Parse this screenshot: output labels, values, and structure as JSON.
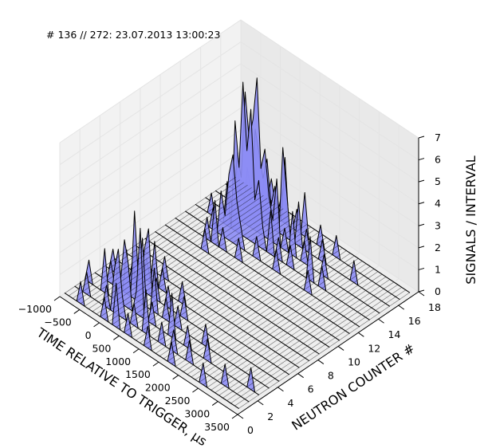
{
  "annotation": "# 136 // 272: 23.07.2013 13:00:23",
  "chart_data": {
    "type": "area",
    "projection": "3d",
    "xlabel": "TIME RELATIVE TO TRIGGER, μs",
    "ylabel": "NEUTRON COUNTER #",
    "zlabel": "SIGNALS / INTERVAL",
    "xlim": [
      -1000,
      3500
    ],
    "ylim": [
      0,
      18
    ],
    "zlim": [
      0,
      7
    ],
    "x_ticks": [
      "−1000",
      "−500",
      "0",
      "500",
      "1000",
      "1500",
      "2000",
      "2500",
      "3000",
      "3500"
    ],
    "y_ticks": [
      "0",
      "2",
      "4",
      "6",
      "8",
      "10",
      "12",
      "14",
      "16",
      "18"
    ],
    "z_ticks": [
      "0",
      "1",
      "2",
      "3",
      "4",
      "5",
      "6",
      "7"
    ],
    "grid": true,
    "face_color": "#8c8cf5",
    "edge_color": "#000000",
    "time_bins": [
      -1000,
      -900,
      -800,
      -700,
      -600,
      -500,
      -400,
      -300,
      -200,
      -100,
      0,
      100,
      200,
      300,
      400,
      500,
      600,
      700,
      800,
      900,
      1000,
      1100,
      1200,
      1300,
      1400,
      1500,
      1600,
      1700,
      1800,
      1900,
      2000,
      2100,
      2200,
      2300,
      2400,
      2500,
      2600,
      2700,
      2800,
      2900,
      3000,
      3100,
      3200,
      3300,
      3400
    ],
    "series": [
      {
        "counter": 1,
        "values": [
          0,
          0,
          0,
          0,
          1,
          0,
          0,
          0,
          0,
          0,
          1,
          0,
          0,
          2,
          0,
          0,
          1,
          0,
          0,
          0,
          0,
          1,
          0,
          0,
          0,
          0,
          0,
          1,
          0,
          0,
          0,
          0,
          0,
          0,
          0,
          1,
          0,
          0,
          0,
          0,
          0,
          0,
          0,
          0,
          0
        ]
      },
      {
        "counter": 2,
        "values": [
          0,
          0,
          0,
          1,
          0,
          0,
          0,
          0,
          1,
          0,
          2,
          3,
          1,
          0,
          0,
          1,
          0,
          0,
          2,
          0,
          0,
          0,
          1,
          0,
          0,
          1,
          0,
          0,
          0,
          1,
          0,
          0,
          0,
          0,
          0,
          0,
          0,
          0,
          1,
          0,
          0,
          0,
          0,
          0,
          0
        ]
      },
      {
        "counter": 3,
        "values": [
          0,
          1,
          0,
          0,
          0,
          2,
          0,
          0,
          0,
          1,
          3,
          2,
          0,
          1,
          4,
          0,
          0,
          1,
          0,
          0,
          0,
          0,
          2,
          0,
          0,
          0,
          1,
          0,
          0,
          0,
          0,
          1,
          0,
          0,
          0,
          0,
          0,
          0,
          0,
          0,
          0,
          0,
          1,
          0,
          0
        ]
      },
      {
        "counter": 4,
        "values": [
          0,
          0,
          0,
          0,
          1,
          0,
          1,
          0,
          2,
          0,
          4,
          1,
          3,
          0,
          0,
          2,
          0,
          0,
          1,
          0,
          0,
          1,
          0,
          0,
          0,
          0,
          0,
          0,
          1,
          0,
          0,
          0,
          0,
          0,
          0,
          0,
          0,
          0,
          0,
          0,
          0,
          0,
          0,
          0,
          0
        ]
      },
      {
        "counter": 5,
        "values": [
          0,
          0,
          1,
          0,
          0,
          0,
          0,
          1,
          0,
          0,
          2,
          3,
          0,
          1,
          0,
          0,
          1,
          0,
          0,
          0,
          1,
          0,
          0,
          0,
          0,
          0,
          0,
          0,
          0,
          0,
          0,
          0,
          0,
          0,
          0,
          0,
          0,
          0,
          0,
          0,
          0,
          0,
          0,
          0,
          0
        ]
      },
      {
        "counter": 6,
        "values": [
          0,
          0,
          0,
          0,
          0,
          1,
          0,
          0,
          1,
          0,
          2,
          0,
          1,
          0,
          0,
          0,
          0,
          1,
          0,
          0,
          0,
          0,
          0,
          0,
          0,
          0,
          0,
          0,
          0,
          0,
          0,
          0,
          0,
          0,
          0,
          0,
          0,
          0,
          0,
          0,
          0,
          0,
          0,
          0,
          0
        ]
      },
      {
        "counter": 7,
        "values": [
          0,
          0,
          0,
          0,
          0,
          0,
          0,
          0,
          0,
          0,
          1,
          0,
          0,
          0,
          0,
          0,
          0,
          0,
          0,
          0,
          0,
          0,
          0,
          0,
          0,
          0,
          0,
          0,
          0,
          0,
          0,
          0,
          0,
          0,
          0,
          0,
          0,
          0,
          0,
          0,
          0,
          0,
          0,
          0,
          0
        ]
      },
      {
        "counter": 8,
        "values": [
          0,
          0,
          0,
          0,
          0,
          0,
          0,
          0,
          0,
          0,
          0,
          0,
          0,
          0,
          0,
          0,
          0,
          0,
          0,
          0,
          0,
          0,
          0,
          0,
          0,
          0,
          0,
          0,
          0,
          0,
          0,
          0,
          0,
          0,
          0,
          0,
          0,
          0,
          0,
          0,
          0,
          0,
          0,
          0,
          0
        ]
      },
      {
        "counter": 9,
        "values": [
          0,
          0,
          0,
          0,
          0,
          0,
          0,
          0,
          0,
          0,
          0,
          0,
          0,
          0,
          0,
          0,
          0,
          0,
          0,
          0,
          0,
          0,
          0,
          0,
          0,
          0,
          0,
          0,
          0,
          0,
          0,
          0,
          0,
          0,
          0,
          0,
          0,
          0,
          0,
          0,
          0,
          0,
          0,
          0,
          0
        ]
      },
      {
        "counter": 10,
        "values": [
          0,
          0,
          0,
          0,
          0,
          0,
          0,
          0,
          0,
          0,
          0,
          0,
          0,
          0,
          0,
          0,
          0,
          0,
          0,
          0,
          0,
          0,
          0,
          0,
          0,
          0,
          0,
          0,
          0,
          0,
          0,
          0,
          0,
          0,
          0,
          0,
          0,
          0,
          0,
          0,
          0,
          0,
          0,
          0,
          0
        ]
      },
      {
        "counter": 11,
        "values": [
          0,
          0,
          0,
          0,
          0,
          0,
          0,
          0,
          0,
          0,
          1,
          0,
          0,
          0,
          0,
          0,
          0,
          0,
          0,
          0,
          0,
          0,
          0,
          0,
          0,
          0,
          0,
          0,
          0,
          0,
          0,
          0,
          0,
          0,
          0,
          0,
          0,
          0,
          0,
          0,
          0,
          0,
          0,
          0,
          0
        ]
      },
      {
        "counter": 12,
        "values": [
          0,
          0,
          0,
          0,
          0,
          0,
          0,
          0,
          1,
          0,
          2,
          0,
          1,
          0,
          0,
          0,
          1,
          0,
          0,
          0,
          0,
          0,
          0,
          0,
          0,
          0,
          0,
          0,
          0,
          0,
          0,
          0,
          0,
          0,
          0,
          0,
          0,
          0,
          0,
          0,
          0,
          0,
          0,
          0,
          0
        ]
      },
      {
        "counter": 13,
        "values": [
          0,
          0,
          0,
          0,
          0,
          0,
          0,
          1,
          0,
          2,
          1,
          3,
          4,
          2,
          1,
          0,
          0,
          0,
          1,
          0,
          0,
          0,
          0,
          1,
          0,
          0,
          0,
          0,
          0,
          0,
          0,
          1,
          0,
          0,
          0,
          0,
          0,
          0,
          0,
          0,
          0,
          0,
          0,
          0,
          0
        ]
      },
      {
        "counter": 14,
        "values": [
          0,
          0,
          0,
          0,
          1,
          0,
          0,
          0,
          2,
          0,
          5,
          3,
          7,
          4,
          6,
          2,
          3,
          1,
          0,
          2,
          0,
          1,
          0,
          0,
          1,
          0,
          0,
          0,
          0,
          2,
          0,
          0,
          1,
          0,
          0,
          0,
          0,
          0,
          0,
          0,
          0,
          0,
          0,
          0,
          0
        ]
      },
      {
        "counter": 15,
        "values": [
          0,
          0,
          0,
          0,
          0,
          0,
          1,
          0,
          3,
          2,
          6,
          4,
          5,
          7,
          3,
          4,
          2,
          1,
          3,
          0,
          1,
          0,
          2,
          0,
          0,
          1,
          0,
          0,
          0,
          0,
          1,
          0,
          0,
          0,
          0,
          0,
          0,
          0,
          0,
          0,
          0,
          0,
          0,
          0,
          0
        ]
      },
      {
        "counter": 16,
        "values": [
          0,
          0,
          0,
          0,
          0,
          1,
          0,
          0,
          2,
          1,
          4,
          3,
          2,
          3,
          1,
          2,
          0,
          4,
          2,
          0,
          0,
          2,
          0,
          1,
          0,
          0,
          0,
          1,
          0,
          0,
          0,
          0,
          0,
          0,
          0,
          1,
          0,
          0,
          0,
          0,
          0,
          0,
          0,
          0,
          0
        ]
      },
      {
        "counter": 17,
        "values": [
          0,
          0,
          0,
          1,
          0,
          0,
          0,
          0,
          1,
          0,
          2,
          1,
          0,
          1,
          0,
          3,
          0,
          0,
          1,
          0,
          2,
          0,
          0,
          0,
          1,
          0,
          0,
          0,
          1,
          0,
          0,
          0,
          0,
          0,
          0,
          0,
          0,
          0,
          0,
          0,
          0,
          0,
          0,
          0,
          0
        ]
      },
      {
        "counter": 18,
        "values": [
          0,
          0,
          0,
          0,
          0,
          0,
          0,
          0,
          0,
          1,
          0,
          0,
          1,
          0,
          0,
          0,
          0,
          0,
          0,
          0,
          0,
          0,
          0,
          0,
          0,
          0,
          0,
          0,
          0,
          0,
          0,
          0,
          0,
          0,
          0,
          0,
          0,
          0,
          0,
          0,
          0,
          0,
          0,
          0,
          0
        ]
      }
    ]
  }
}
